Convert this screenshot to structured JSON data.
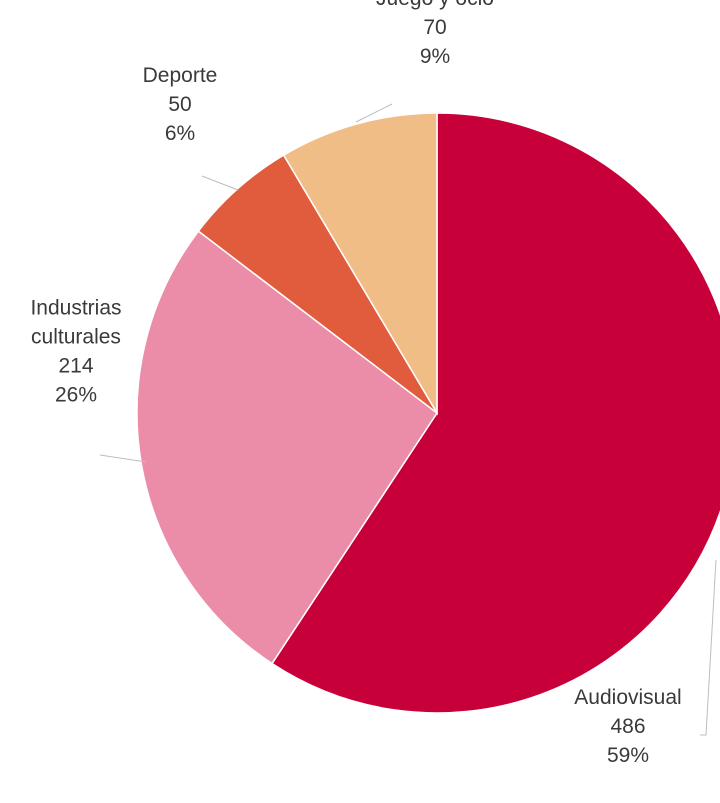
{
  "chart_data": {
    "type": "pie",
    "title": "",
    "slices": [
      {
        "name": "Audiovisual",
        "value": 486,
        "percent": "59%",
        "color": "#c8003a"
      },
      {
        "name": "Industrias culturales",
        "value": 214,
        "percent": "26%",
        "color": "#eb8ca8"
      },
      {
        "name": "Deporte",
        "value": 50,
        "percent": "6%",
        "color": "#e05c3c"
      },
      {
        "name": "Juego y ocio",
        "value": 70,
        "percent": "9%",
        "color": "#f1bd87"
      }
    ],
    "legend": "none (labels next to slices)"
  }
}
